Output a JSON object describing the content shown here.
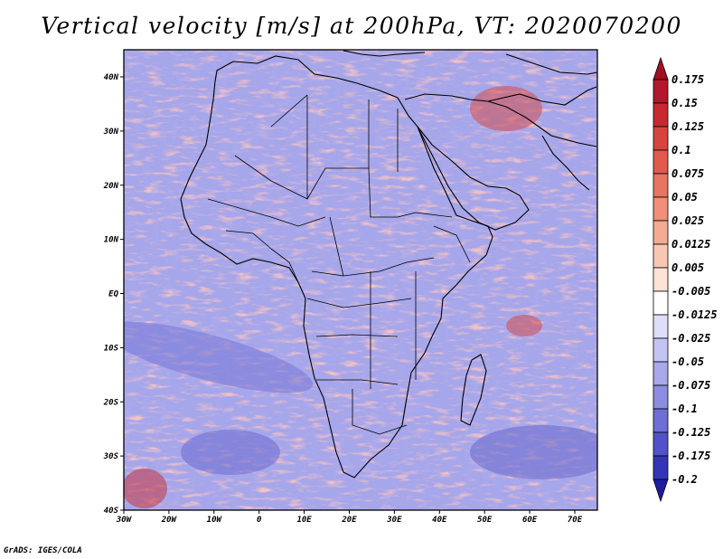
{
  "title": "Vertical velocity [m/s] at 200hPa, VT: 2020070200",
  "credit": "GrADS: IGES/COLA",
  "map": {
    "lat_labels": [
      "40N",
      "30N",
      "20N",
      "10N",
      "EQ",
      "10S",
      "20S",
      "30S",
      "40S"
    ],
    "lon_labels": [
      "30W",
      "20W",
      "10W",
      "0",
      "10E",
      "20E",
      "30E",
      "40E",
      "50E",
      "60E",
      "70E"
    ]
  },
  "colorbar": {
    "levels": [
      "0.175",
      "0.15",
      "0.125",
      "0.1",
      "0.075",
      "0.05",
      "0.025",
      "0.0125",
      "0.005",
      "-0.005",
      "-0.0125",
      "-0.025",
      "-0.05",
      "-0.075",
      "-0.1",
      "-0.125",
      "-0.175",
      "-0.2"
    ],
    "colors": [
      "#b2182b",
      "#c62a2f",
      "#d6443e",
      "#e05a4e",
      "#e87562",
      "#ef9077",
      "#f4ab91",
      "#f8c7b3",
      "#fce3d6",
      "#ffffff",
      "#dedef8",
      "#c4c4f2",
      "#a8a8ea",
      "#8c8ce0",
      "#6e6ed6",
      "#5252c8",
      "#3434b8",
      "#1c1ca0"
    ]
  }
}
